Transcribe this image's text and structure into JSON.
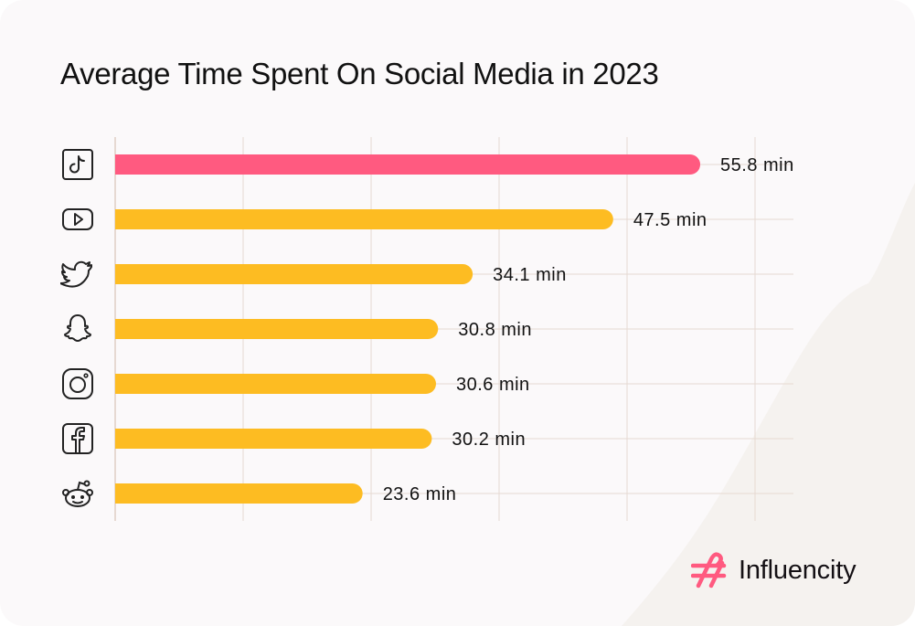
{
  "colors": {
    "background": "#fbf9fa",
    "accent_shape": "#f5f2ef",
    "highlight_bar": "#ff5a80",
    "bar": "#fdbc22",
    "grid": "#e6d9d2",
    "text": "#111111",
    "logo_mark": "#ff5a80"
  },
  "brand": {
    "name": "Influencity",
    "icon": "hashtag-logo-icon"
  },
  "chart_data": {
    "type": "bar",
    "orientation": "horizontal",
    "title": "Average Time Spent On Social Media in 2023",
    "xlabel": "",
    "ylabel": "",
    "unit": "min",
    "grid": true,
    "xlim": [
      0,
      60
    ],
    "categories": [
      "TikTok",
      "YouTube",
      "Twitter",
      "Snapchat",
      "Instagram",
      "Facebook",
      "Reddit"
    ],
    "category_icons": [
      "tiktok-icon",
      "youtube-icon",
      "twitter-icon",
      "snapchat-icon",
      "instagram-icon",
      "facebook-icon",
      "reddit-icon"
    ],
    "values": [
      55.8,
      47.5,
      34.1,
      30.8,
      30.6,
      30.2,
      23.6
    ],
    "labels": [
      "55.8 min",
      "47.5 min",
      "34.1 min",
      "30.8 min",
      "30.6 min",
      "30.2 min",
      "23.6 min"
    ],
    "highlight_index": 0
  }
}
